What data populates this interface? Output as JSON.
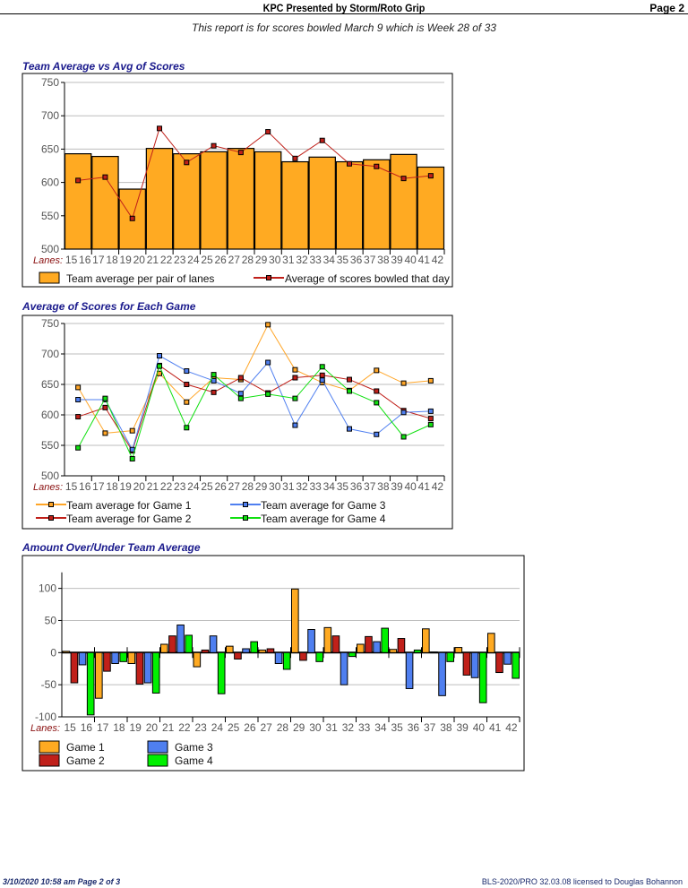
{
  "header": {
    "title": "KPC Presented by Storm/Roto Grip",
    "page": "Page 2",
    "subtitle": "This report is for scores bowled March 9   which is Week 28 of 33"
  },
  "footer": {
    "left": "3/10/2020  10:58 am  Page 2 of 3",
    "right": "BLS-2020/PRO 32.03.08 licensed to Douglas Bohannon"
  },
  "chart_data": [
    {
      "title": "Team Average vs Avg of Scores",
      "type": "bar",
      "xlabel": "Lanes:",
      "categories": [
        "15 16",
        "17 18",
        "19 20",
        "21 22",
        "23 24",
        "25 26",
        "27 28",
        "29 30",
        "31 32",
        "33 34",
        "35 36",
        "37 38",
        "39 40",
        "41 42"
      ],
      "lane_labels": [
        "15",
        "16",
        "17",
        "18",
        "19",
        "20",
        "21",
        "22",
        "23",
        "24",
        "25",
        "26",
        "27",
        "28",
        "29",
        "30",
        "31",
        "32",
        "33",
        "34",
        "35",
        "36",
        "37",
        "38",
        "39",
        "40",
        "41",
        "42"
      ],
      "ylim": [
        500,
        750
      ],
      "yticks": [
        500,
        550,
        600,
        650,
        700,
        750
      ],
      "grid": true,
      "legend": "bottom",
      "series": [
        {
          "name": "Team average per pair of lanes",
          "kind": "bar",
          "color": "#FFAA22",
          "values": [
            643,
            639,
            590,
            651,
            643,
            646,
            651,
            646,
            631,
            638,
            631,
            634,
            642,
            623
          ]
        },
        {
          "name": "Average of scores bowled that day",
          "kind": "line",
          "color": "#C0201A",
          "values": [
            603,
            608,
            546,
            681,
            630,
            655,
            645,
            676,
            636,
            663,
            628,
            624,
            606,
            610
          ]
        }
      ]
    },
    {
      "title": "Average of Scores for Each Game",
      "type": "line",
      "xlabel": "Lanes:",
      "categories": [
        "15 16",
        "17 18",
        "19 20",
        "21 22",
        "23 24",
        "25 26",
        "27 28",
        "29 30",
        "31 32",
        "33 34",
        "35 36",
        "37 38",
        "39 40",
        "41 42"
      ],
      "lane_labels": [
        "15",
        "16",
        "17",
        "18",
        "19",
        "20",
        "21",
        "22",
        "23",
        "24",
        "25",
        "26",
        "27",
        "28",
        "29",
        "30",
        "31",
        "32",
        "33",
        "34",
        "35",
        "36",
        "37",
        "38",
        "39",
        "40",
        "41",
        "42"
      ],
      "ylim": [
        500,
        750
      ],
      "yticks": [
        500,
        550,
        600,
        650,
        700,
        750
      ],
      "grid": true,
      "legend": "bottom",
      "series": [
        {
          "name": "Team average for Game 1",
          "color": "#FFA526",
          "values": [
            645,
            570,
            574,
            668,
            621,
            661,
            658,
            748,
            674,
            653,
            640,
            673,
            652,
            656
          ]
        },
        {
          "name": "Team average for Game 2",
          "color": "#C0201A",
          "values": [
            597,
            612,
            541,
            681,
            650,
            637,
            661,
            636,
            661,
            665,
            658,
            639,
            607,
            594
          ]
        },
        {
          "name": "Team average for Game 3",
          "color": "#4F7FF0",
          "values": [
            625,
            625,
            543,
            697,
            672,
            656,
            635,
            686,
            583,
            657,
            577,
            568,
            604,
            606
          ]
        },
        {
          "name": "Team average for Game 4",
          "color": "#10E010",
          "values": [
            546,
            627,
            528,
            680,
            579,
            666,
            627,
            634,
            627,
            679,
            639,
            620,
            564,
            584
          ]
        }
      ]
    },
    {
      "title": "Amount Over/Under Team Average",
      "type": "bar",
      "xlabel": "Lanes:",
      "categories": [
        "15 16",
        "17 18",
        "19 20",
        "21 22",
        "23 24",
        "25 26",
        "27 28",
        "29 30",
        "31 32",
        "33 34",
        "35 36",
        "37 38",
        "39 40",
        "41 42"
      ],
      "lane_labels": [
        "15",
        "16",
        "17",
        "18",
        "19",
        "20",
        "21",
        "22",
        "23",
        "24",
        "25",
        "26",
        "27",
        "28",
        "29",
        "30",
        "31",
        "32",
        "33",
        "34",
        "35",
        "36",
        "37",
        "38",
        "39",
        "40",
        "41",
        "42"
      ],
      "ylim": [
        -100,
        125
      ],
      "yticks": [
        -100,
        -50,
        0,
        50,
        100
      ],
      "grid": true,
      "legend": "bottom",
      "series": [
        {
          "name": "Game 1",
          "color": "#FFAA22",
          "values": [
            2,
            -71,
            -17,
            13,
            -22,
            10,
            4,
            99,
            39,
            13,
            5,
            37,
            8,
            30
          ]
        },
        {
          "name": "Game 2",
          "color": "#C0201A",
          "values": [
            -47,
            -29,
            -49,
            26,
            4,
            -10,
            6,
            -12,
            26,
            25,
            22,
            1,
            -35,
            -31
          ]
        },
        {
          "name": "Game 3",
          "color": "#4F7FF0",
          "values": [
            -19,
            -17,
            -47,
            43,
            26,
            6,
            -17,
            36,
            -50,
            17,
            -56,
            -67,
            -39,
            -18
          ]
        },
        {
          "name": "Game 4",
          "color": "#00F000",
          "values": [
            -97,
            -14,
            -63,
            27,
            -64,
            17,
            -26,
            -14,
            -6,
            38,
            4,
            -14,
            -78,
            -40
          ]
        }
      ]
    }
  ]
}
